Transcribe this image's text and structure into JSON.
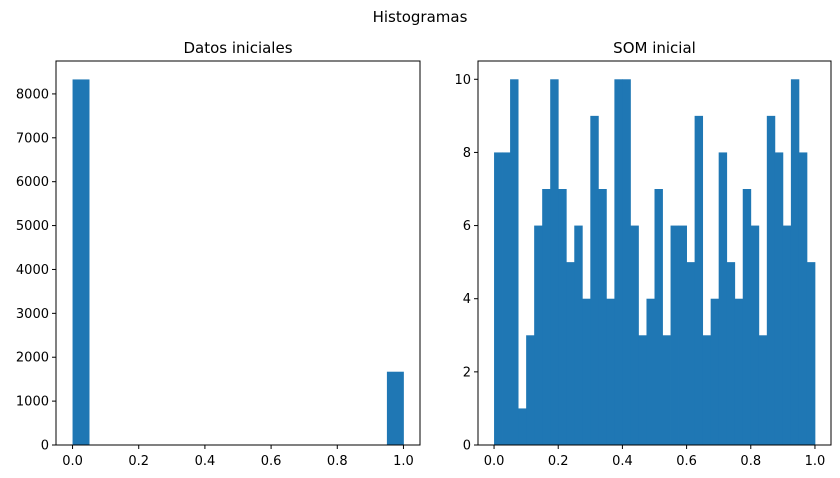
{
  "figure": {
    "suptitle": "Histogramas",
    "bar_color": "#1f77b4"
  },
  "chart_data": [
    {
      "type": "bar",
      "title": "Datos iniciales",
      "xlabel": "",
      "ylabel": "",
      "xlim": [
        -0.05,
        1.05
      ],
      "ylim": [
        0,
        8750
      ],
      "xticks": [
        0.0,
        0.2,
        0.4,
        0.6,
        0.8,
        1.0
      ],
      "xtick_labels": [
        "0.0",
        "0.2",
        "0.4",
        "0.6",
        "0.8",
        "1.0"
      ],
      "yticks": [
        0,
        1000,
        2000,
        3000,
        4000,
        5000,
        6000,
        7000,
        8000
      ],
      "ytick_labels": [
        "0",
        "1000",
        "2000",
        "3000",
        "4000",
        "5000",
        "6000",
        "7000",
        "8000"
      ],
      "bin_start": 0.0,
      "bin_width": 0.05,
      "values": [
        8330,
        0,
        0,
        0,
        0,
        0,
        0,
        0,
        0,
        0,
        0,
        0,
        0,
        0,
        0,
        0,
        0,
        0,
        0,
        1670
      ],
      "grid": false
    },
    {
      "type": "bar",
      "title": "SOM inicial",
      "xlabel": "",
      "ylabel": "",
      "xlim": [
        -0.05,
        1.05
      ],
      "ylim": [
        0,
        10.5
      ],
      "xticks": [
        0.0,
        0.2,
        0.4,
        0.6,
        0.8,
        1.0
      ],
      "xtick_labels": [
        "0.0",
        "0.2",
        "0.4",
        "0.6",
        "0.8",
        "1.0"
      ],
      "yticks": [
        0,
        2,
        4,
        6,
        8,
        10
      ],
      "ytick_labels": [
        "0",
        "2",
        "4",
        "6",
        "8",
        "10"
      ],
      "bin_start": 0.0,
      "bin_width": 0.025,
      "values": [
        8,
        8,
        10,
        1,
        3,
        6,
        7,
        10,
        7,
        5,
        6,
        4,
        9,
        7,
        4,
        10,
        10,
        6,
        3,
        4,
        7,
        3,
        6,
        6,
        5,
        9,
        3,
        4,
        8,
        5,
        4,
        7,
        6,
        3,
        9,
        8,
        6,
        10,
        8,
        5
      ],
      "grid": false
    }
  ]
}
